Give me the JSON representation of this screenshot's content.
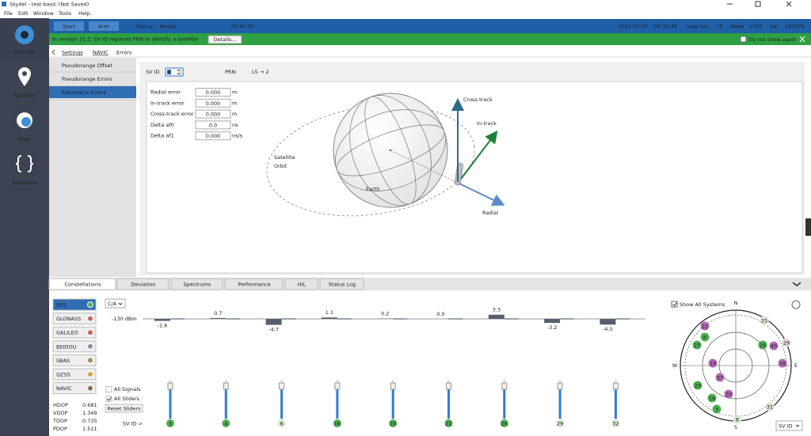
{
  "window": {
    "title": "Skydel - test-basic (Not Saved)"
  },
  "menu": [
    "File",
    "Edit",
    "Window",
    "Tools",
    "Help"
  ],
  "sidebar": [
    "Settings",
    "Receiver",
    "Map",
    "Automate"
  ],
  "toolbar": {
    "start": "Start",
    "arm": "Arm",
    "status_label": "Status",
    "status": "Ready",
    "elapsed": "00:00:00",
    "date": "2024-05-29",
    "time": "06:34:39",
    "leap_label": "Leap Sec",
    "leap": "18",
    "week_label": "Week",
    "week": "2316",
    "sec_label": "Sec",
    "sec": "282879"
  },
  "notice": {
    "text": "In version 21.3, SV ID replaces PRN to identify a satellite",
    "button": "Details...",
    "checkbox": "Do not show again"
  },
  "breadcrumb": [
    "Settings",
    "NAVIC",
    "Errors"
  ],
  "nav": [
    "Pseudorange Offset",
    "Pseudorange Errors",
    "Ephemeris Errors"
  ],
  "sv_selector": {
    "label": "SV ID",
    "value": "8",
    "prn_label": "PRN:",
    "prn": "L5 → 2"
  },
  "errors": [
    [
      "Radial error",
      "0.000",
      "m"
    ],
    [
      "In-track error",
      "0.000",
      "m"
    ],
    [
      "Cross-track error",
      "0.000",
      "m"
    ],
    [
      "Delta af0",
      "0.0",
      "ns"
    ],
    [
      "Delta af1",
      "0.000",
      "ns/s"
    ]
  ],
  "diagram": {
    "cross_track": "Cross-track",
    "in_track": "In-track",
    "radial": "Radial",
    "orbit": [
      "Satellite",
      "Orbit"
    ],
    "earth": "Earth"
  },
  "tabs": [
    "Constellations",
    "Deviation",
    "Spectrums",
    "Performance",
    "HIL",
    "Status Log"
  ],
  "constellations": [
    {
      "name": "GPS",
      "color": "#4caf50"
    },
    {
      "name": "GLONASS",
      "color": "#c8645a"
    },
    {
      "name": "GALILEO",
      "color": "#c8645a"
    },
    {
      "name": "BEIDOU",
      "color": "#8e8a9c"
    },
    {
      "name": "SBAS",
      "color": "#9c8a5e"
    },
    {
      "name": "QZSS",
      "color": "#d4a03a"
    },
    {
      "name": "NAVIC",
      "color": "#8c6e50"
    }
  ],
  "dop": [
    [
      "HDOP",
      "0.681"
    ],
    [
      "VDOP",
      "1.349"
    ],
    [
      "TDOP",
      "0.735"
    ],
    [
      "PDOP",
      "1.511"
    ]
  ],
  "signal": {
    "band": "C/A",
    "level": "-130 dBm",
    "values": [
      -1.6,
      0.7,
      -4.7,
      1.1,
      0.2,
      0,
      3.3,
      -3.2,
      -4.5
    ],
    "value_labels": [
      "-1.6",
      "0.7",
      "-4.7",
      "1.1",
      "0.2",
      "0.0",
      "3.3",
      "-3.2",
      "-4.5"
    ],
    "sv_ids": [
      "3",
      "4",
      "6",
      "16",
      "20",
      "22",
      "26",
      "29",
      "32"
    ],
    "options": [
      "All Signals",
      "All Sliders"
    ],
    "reset": "Reset Sliders",
    "axis_label": "SV ID >"
  },
  "skyplot": {
    "show_all": "Show All Systems",
    "directions": [
      "N",
      "E",
      "S",
      "W"
    ],
    "dropdown": "SV ID",
    "satellites": [
      {
        "label": "22",
        "color": "#b06ab3"
      },
      {
        "label": "6",
        "color": "#4caf50"
      },
      {
        "label": "23",
        "color": "#4caf50"
      },
      {
        "label": "26",
        "color": "#4caf50"
      },
      {
        "label": "40",
        "color": "#b06ab3"
      },
      {
        "label": "25",
        "color": "#d6e9cf"
      },
      {
        "label": "29",
        "color": "#e6d8ea"
      },
      {
        "label": "19",
        "color": "#b06ab3"
      },
      {
        "label": "37",
        "color": "#b06ab3"
      },
      {
        "label": "28",
        "color": "#b06ab3"
      },
      {
        "label": "29",
        "color": "#4caf50"
      },
      {
        "label": "16",
        "color": "#4caf50"
      },
      {
        "label": "20",
        "color": "#b06ab3"
      },
      {
        "label": "3",
        "color": "#4caf50"
      },
      {
        "label": "31",
        "color": "#d6e9cf"
      },
      {
        "label": "8",
        "color": "#d6e9cf"
      }
    ]
  }
}
